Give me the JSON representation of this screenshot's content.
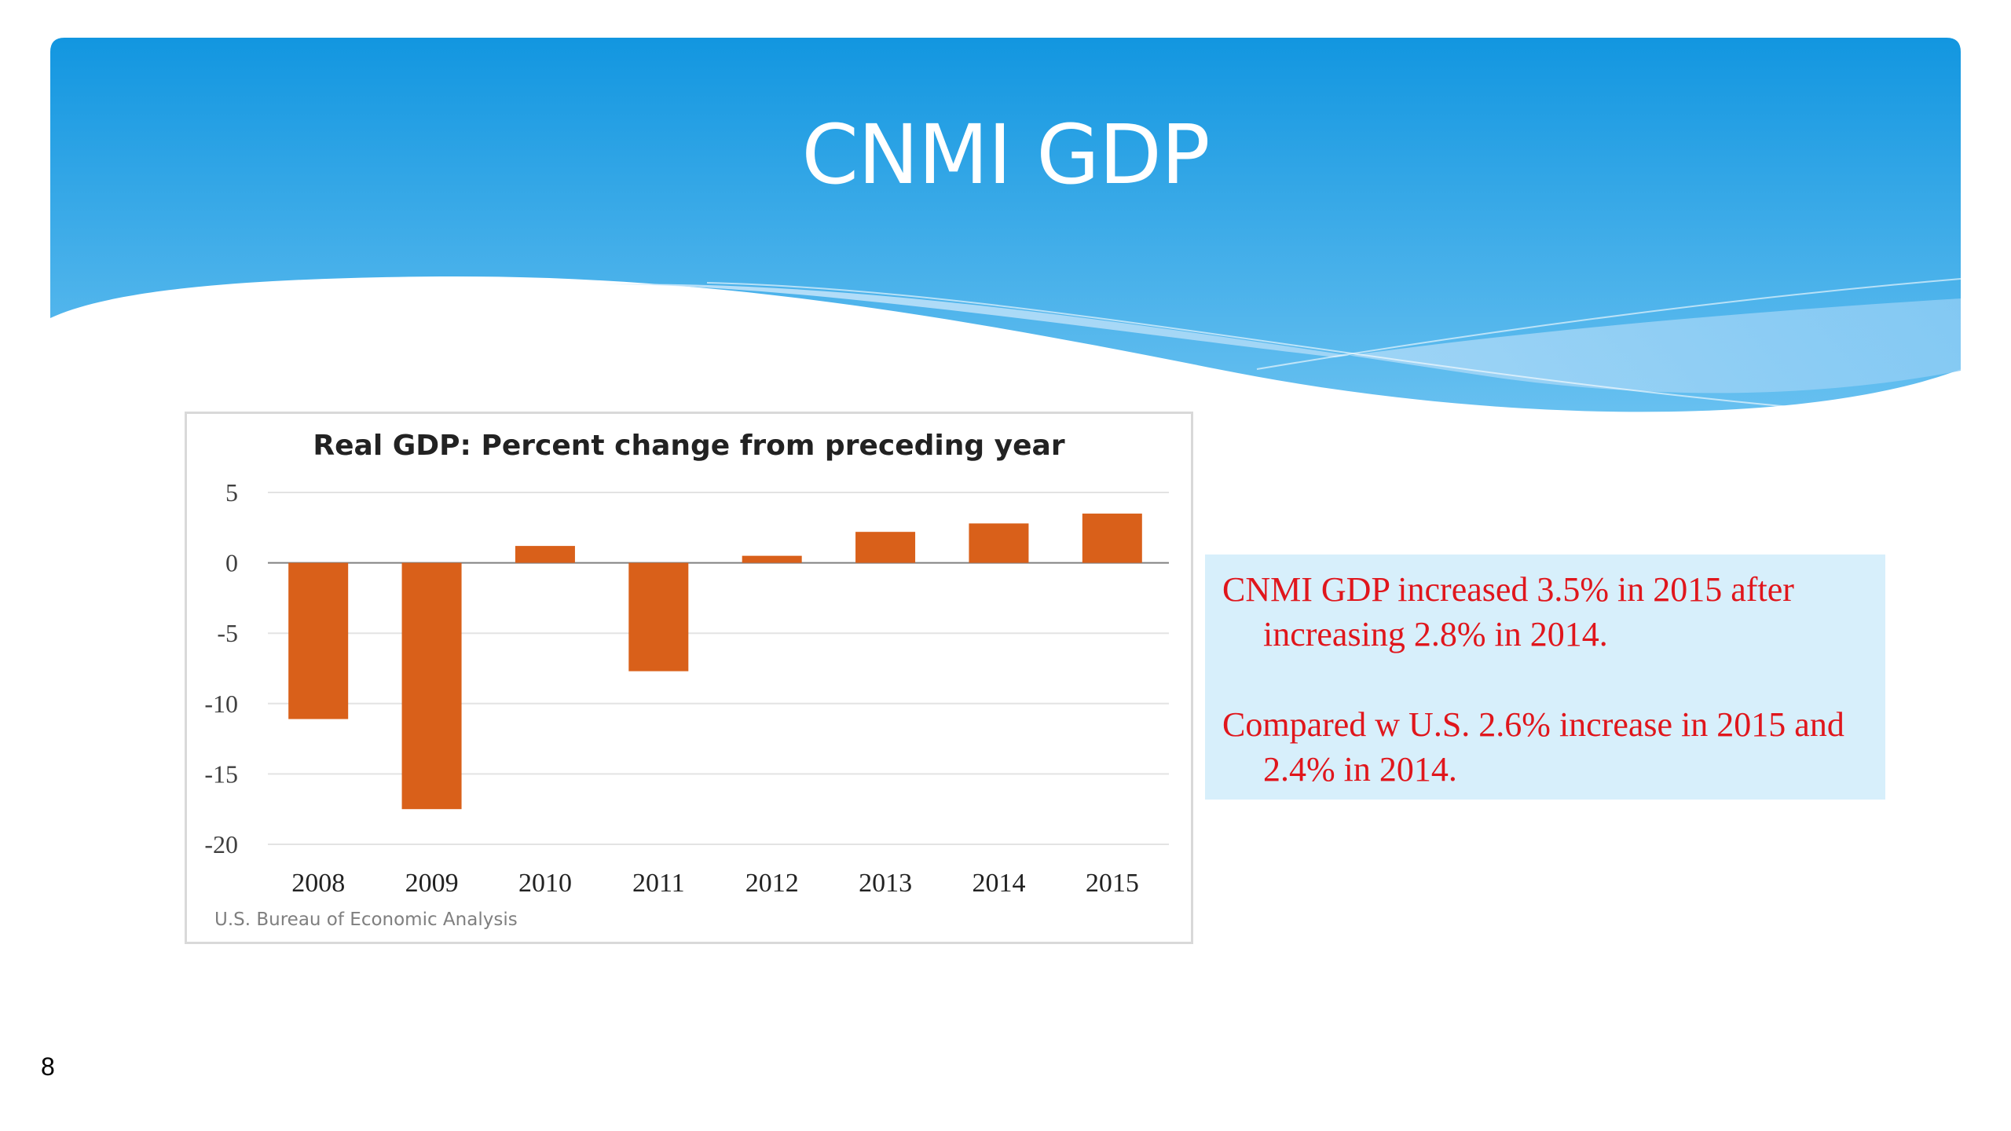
{
  "slide": {
    "title": "CNMI GDP",
    "number": "8",
    "notes": [
      "CNMI GDP increased 3.5% in 2015 after increasing 2.8% in 2014.",
      "Compared w U.S. 2.6% increase in 2015 and 2.4% in 2014."
    ]
  },
  "colors": {
    "header_top": "#1296e0",
    "header_bottom": "#5ab8ee",
    "wave_light": "#a8d8f6",
    "bar": "#d9601a",
    "note_text": "#e0161c",
    "note_bg": "#d7effb"
  },
  "chart_data": {
    "type": "bar",
    "title": "Real GDP:  Percent change from preceding year",
    "source": "U.S. Bureau of Economic Analysis",
    "categories": [
      "2008",
      "2009",
      "2010",
      "2011",
      "2012",
      "2013",
      "2014",
      "2015"
    ],
    "values": [
      -11.1,
      -17.5,
      1.2,
      -7.7,
      0.5,
      2.2,
      2.8,
      3.5
    ],
    "yticks": [
      "5",
      "0",
      "-5",
      "-10",
      "-15",
      "-20"
    ],
    "ylim": [
      -20,
      5
    ],
    "grid": true,
    "legend": "none",
    "xlabel": "",
    "ylabel": ""
  }
}
